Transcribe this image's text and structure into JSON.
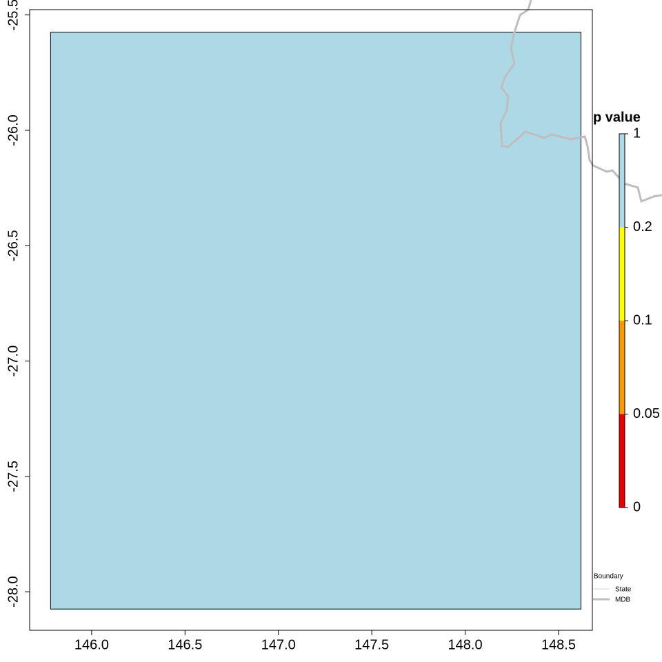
{
  "chart_data": {
    "type": "raster-map",
    "xlim": [
      145.668,
      148.681
    ],
    "ylim": [
      -28.167,
      -25.477
    ],
    "xticks": [
      {
        "value": 146,
        "label": "146.0"
      },
      {
        "value": 146.5,
        "label": "146.5"
      },
      {
        "value": 147,
        "label": "147.0"
      },
      {
        "value": 147.5,
        "label": "147.5"
      },
      {
        "value": 148,
        "label": "148.0"
      },
      {
        "value": 148.5,
        "label": "148.5"
      }
    ],
    "yticks": [
      {
        "value": -25.5,
        "label": "-25.5"
      },
      {
        "value": -26,
        "label": "-26.0"
      },
      {
        "value": -26.5,
        "label": "-26.5"
      },
      {
        "value": -27,
        "label": "-27.0"
      },
      {
        "value": -27.5,
        "label": "-27.5"
      },
      {
        "value": -28,
        "label": "-28.0"
      }
    ],
    "raster": {
      "xmin": 145.78,
      "xmax": 148.62,
      "ymin": -28.075,
      "ymax": -25.575,
      "color": "#add8e6"
    },
    "colorbar": {
      "title": "p value",
      "breaks": [
        0,
        0.05,
        0.1,
        0.2,
        1
      ],
      "colors": [
        "#ee0000",
        "#ff9900",
        "#ffff00",
        "#add8e6"
      ]
    },
    "legend": {
      "title": "Boundary",
      "items": [
        {
          "name": "State",
          "color": "#d3d3d3",
          "width": 1
        },
        {
          "name": "MDB",
          "color": "#bebebe",
          "width": 3
        }
      ]
    }
  }
}
